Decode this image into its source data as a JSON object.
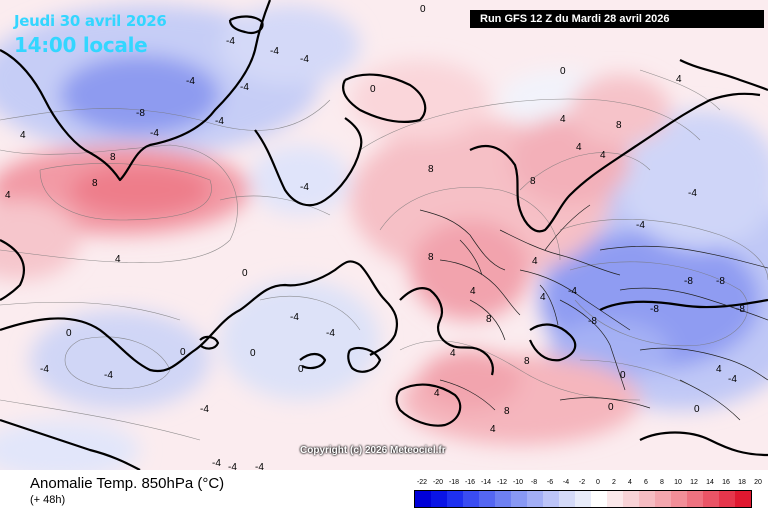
{
  "header": {
    "date": "Jeudi 30 avril 2026",
    "time": "14:00 locale",
    "run": "Run GFS 12 Z du Mardi 28 avril 2026"
  },
  "copyright": "Copyright (c) 2026 Meteociel.fr",
  "footer": {
    "title": "Anomalie Temp. 850hPa (°C)",
    "subtitle": "(+ 48h)"
  },
  "legend": {
    "labels": [
      "-22",
      "-20",
      "-18",
      "-16",
      "-14",
      "-12",
      "-10",
      "-8",
      "-6",
      "-4",
      "-2",
      "0",
      "2",
      "4",
      "6",
      "8",
      "10",
      "12",
      "14",
      "16",
      "18",
      "20"
    ],
    "colors": [
      "#0000d8",
      "#0a14e6",
      "#1e30f0",
      "#3a4cf2",
      "#5466f2",
      "#6e80f2",
      "#8898f4",
      "#a2aef6",
      "#bcc4f8",
      "#d4daf8",
      "#e8ecfa",
      "#ffffff",
      "#fbe8ea",
      "#f8d2d6",
      "#f6bcc2",
      "#f4a6ae",
      "#f28e98",
      "#ee7280",
      "#ea5466",
      "#e6364c",
      "#e01830"
    ]
  },
  "map": {
    "contour_labels": [
      "-4",
      "-4",
      "-4",
      "-4",
      "-8",
      "-4",
      "-4",
      "-4",
      "-4",
      "0",
      "0",
      "0",
      "8",
      "8",
      "4",
      "4",
      "4",
      "4",
      "0",
      "0",
      "0",
      "8",
      "8",
      "8",
      "8",
      "4",
      "4",
      "-4",
      "-4",
      "-4",
      "-8",
      "-8",
      "-8",
      "-8",
      "-8",
      "-4",
      "0",
      "0",
      "4",
      "4",
      "4",
      "8",
      "8",
      "8",
      "4",
      "0",
      "-4",
      "-4",
      "-4",
      "-4",
      "0",
      "-4",
      "4",
      "4",
      "0",
      "4",
      "4",
      "-4",
      "-4",
      "-4"
    ]
  }
}
